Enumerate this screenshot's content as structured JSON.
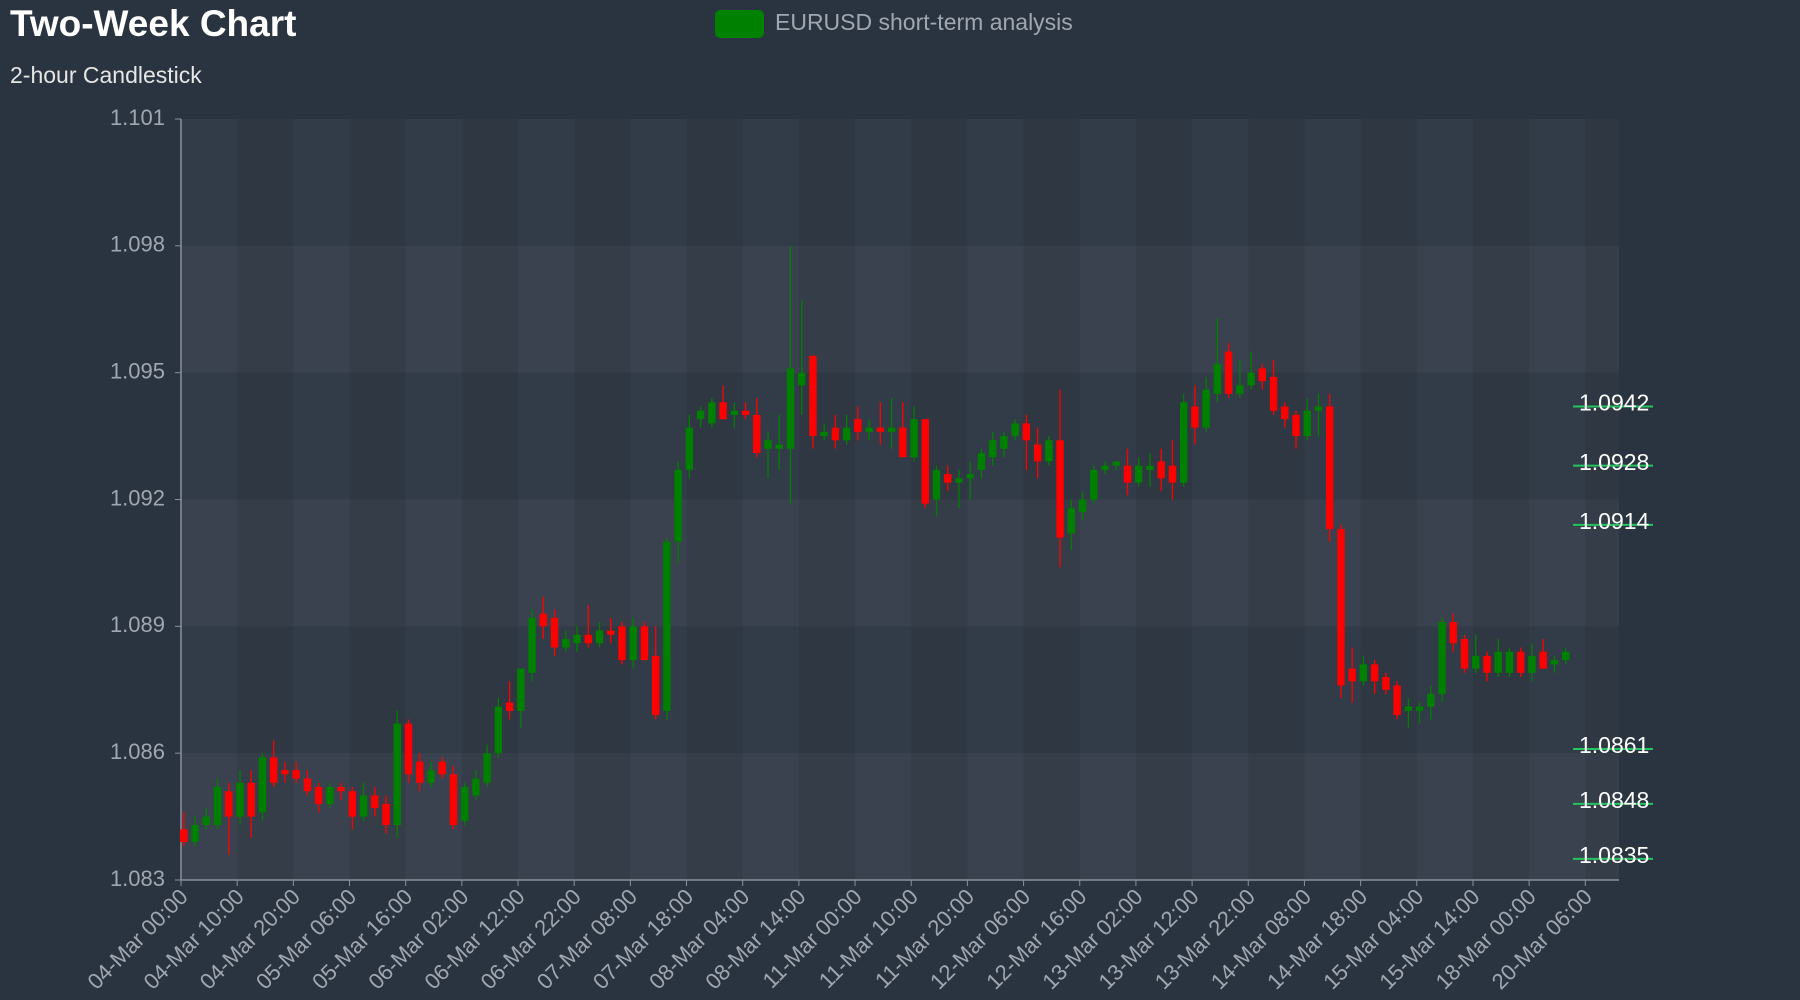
{
  "chart_data": {
    "type": "candlestick",
    "title": "Two-Week Chart",
    "subtitle": "2-hour Candlestick",
    "categories": [
      "04-Mar 00:00",
      null,
      null,
      null,
      null,
      "04-Mar 10:00",
      null,
      null,
      null,
      null,
      "04-Mar 20:00",
      null,
      null,
      null,
      null,
      "05-Mar 06:00",
      null,
      null,
      null,
      null,
      "05-Mar 16:00",
      null,
      null,
      null,
      null,
      "06-Mar 02:00",
      null,
      null,
      null,
      null,
      "06-Mar 12:00",
      null,
      null,
      null,
      null,
      "06-Mar 22:00",
      null,
      null,
      null,
      null,
      "07-Mar 08:00",
      null,
      null,
      null,
      null,
      "07-Mar 18:00",
      null,
      null,
      null,
      null,
      "08-Mar 04:00",
      null,
      null,
      null,
      null,
      "08-Mar 14:00",
      null,
      null,
      null,
      null,
      "11-Mar 00:00",
      null,
      null,
      null,
      null,
      "11-Mar 10:00",
      null,
      null,
      null,
      null,
      "11-Mar 20:00",
      null,
      null,
      null,
      null,
      "12-Mar 06:00",
      null,
      null,
      null,
      null,
      "12-Mar 16:00",
      null,
      null,
      null,
      null,
      "13-Mar 02:00",
      null,
      null,
      null,
      null,
      "13-Mar 12:00",
      null,
      null,
      null,
      null,
      "13-Mar 22:00",
      null,
      null,
      null,
      null,
      "14-Mar 08:00",
      null,
      null,
      null,
      null,
      "14-Mar 18:00",
      null,
      null,
      null,
      null,
      "15-Mar 04:00",
      null,
      null,
      null,
      null,
      "15-Mar 14:00",
      null,
      null,
      null,
      null,
      "18-Mar 00:00",
      null,
      null,
      null,
      null,
      "20-Mar 06:00",
      null,
      null
    ],
    "series": [
      {
        "name": "EURUSD short-term analysis",
        "color": "#008000",
        "down_color": "#ff0000",
        "open": [
          1.0842,
          1.0839,
          1.0843,
          1.0843,
          1.0851,
          1.0845,
          1.0853,
          1.0846,
          1.0859,
          1.0856,
          1.0856,
          1.0854,
          1.0852,
          1.0848,
          1.0852,
          1.0851,
          1.0845,
          1.085,
          1.0848,
          1.0843,
          1.0867,
          1.0858,
          1.0853,
          1.0858,
          1.0855,
          1.0844,
          1.085,
          1.0853,
          1.086,
          1.0872,
          1.087,
          1.0879,
          1.0893,
          1.0892,
          1.0885,
          1.0886,
          1.0888,
          1.0886,
          1.0889,
          1.089,
          1.0882,
          1.089,
          1.0883,
          1.087,
          1.091,
          1.0927,
          1.0939,
          1.0938,
          1.0943,
          1.094,
          1.0941,
          1.094,
          1.0932,
          1.0932,
          1.0932,
          1.0947,
          1.0954,
          1.0935,
          1.0937,
          1.0934,
          1.0939,
          1.0936,
          1.0937,
          1.0936,
          1.0937,
          1.093,
          1.0939,
          1.092,
          1.0926,
          1.0924,
          1.0925,
          1.0927,
          1.093,
          1.0932,
          1.0935,
          1.0938,
          1.0933,
          1.0929,
          1.0934,
          1.0912,
          1.0917,
          1.092,
          1.0927,
          1.0928,
          1.0928,
          1.0924,
          1.0927,
          1.0929,
          1.0928,
          1.0924,
          1.0942,
          1.0937,
          1.0945,
          1.0955,
          1.0945,
          1.0947,
          1.0951,
          1.0949,
          1.0942,
          1.094,
          1.0935,
          1.0941,
          1.0942,
          1.0913,
          1.088,
          1.0877,
          1.0881,
          1.0878,
          1.0876,
          1.087,
          1.087,
          1.0871,
          1.0874,
          1.0891,
          1.0887,
          1.088,
          1.0883,
          1.0879,
          1.0879,
          1.0884,
          1.0879,
          1.0884,
          1.0881,
          1.0882,
          null,
          null,
          null,
          null
        ],
        "high": [
          1.0846,
          1.0845,
          1.0847,
          1.0854,
          1.0853,
          1.0856,
          1.0856,
          1.086,
          1.0863,
          1.0858,
          1.0858,
          1.0856,
          1.0853,
          1.0853,
          1.0853,
          1.0852,
          1.0853,
          1.0852,
          1.085,
          1.087,
          1.0868,
          1.086,
          1.0858,
          1.0859,
          1.0857,
          1.0853,
          1.0856,
          1.0862,
          1.0873,
          1.0877,
          1.088,
          1.0894,
          1.0897,
          1.0894,
          1.0889,
          1.089,
          1.0895,
          1.0891,
          1.0892,
          1.0891,
          1.0892,
          1.0891,
          1.089,
          1.0911,
          1.0929,
          1.094,
          1.0942,
          1.0944,
          1.0947,
          1.0943,
          1.0943,
          1.0944,
          1.0936,
          1.094,
          1.098,
          1.0967,
          1.0954,
          1.0938,
          1.094,
          1.094,
          1.0942,
          1.0939,
          1.0943,
          1.0944,
          1.0943,
          1.0942,
          1.0939,
          1.0928,
          1.0928,
          1.0927,
          1.0929,
          1.0932,
          1.0936,
          1.0936,
          1.0939,
          1.094,
          1.0937,
          1.0935,
          1.0946,
          1.092,
          1.0922,
          1.0928,
          1.0929,
          1.0929,
          1.0932,
          1.093,
          1.0931,
          1.0932,
          1.0934,
          1.0945,
          1.0947,
          1.0949,
          1.0963,
          1.0957,
          1.0953,
          1.0955,
          1.0952,
          1.0953,
          1.0943,
          1.0941,
          1.0944,
          1.0945,
          1.0945,
          1.0914,
          1.0885,
          1.0883,
          1.0882,
          1.0879,
          1.0877,
          1.0873,
          1.0872,
          1.0876,
          1.0892,
          1.0893,
          1.0888,
          1.0888,
          1.0884,
          1.0887,
          1.0885,
          1.0885,
          1.0886,
          1.0887,
          1.0883,
          1.0885,
          null,
          null,
          null,
          null
        ],
        "low": [
          1.0838,
          1.0838,
          1.0842,
          1.0842,
          1.0836,
          1.0843,
          1.084,
          1.0844,
          1.0852,
          1.0853,
          1.0853,
          1.085,
          1.0846,
          1.0847,
          1.0849,
          1.0842,
          1.0844,
          1.0845,
          1.0841,
          1.084,
          1.0853,
          1.0851,
          1.0852,
          1.0854,
          1.0842,
          1.0843,
          1.0849,
          1.0852,
          1.0859,
          1.0868,
          1.0866,
          1.0877,
          1.0887,
          1.0883,
          1.0884,
          1.0884,
          1.0885,
          1.0885,
          1.0886,
          1.0881,
          1.088,
          1.0882,
          1.0868,
          1.0868,
          1.0905,
          1.0925,
          1.0937,
          1.0937,
          1.0939,
          1.0937,
          1.0939,
          1.093,
          1.0925,
          1.0927,
          1.0919,
          1.094,
          1.0932,
          1.0934,
          1.0932,
          1.0933,
          1.0934,
          1.0934,
          1.0933,
          1.0932,
          1.093,
          1.0929,
          1.0918,
          1.0916,
          1.0922,
          1.0918,
          1.092,
          1.0925,
          1.0928,
          1.093,
          1.0934,
          1.0927,
          1.0925,
          1.0928,
          1.0904,
          1.0908,
          1.0915,
          1.0919,
          1.0926,
          1.0927,
          1.0921,
          1.0923,
          1.0923,
          1.0922,
          1.092,
          1.0923,
          1.0933,
          1.0936,
          1.0943,
          1.0944,
          1.0944,
          1.0946,
          1.0946,
          1.094,
          1.0937,
          1.0932,
          1.0934,
          1.0935,
          1.091,
          1.0873,
          1.0872,
          1.0876,
          1.0874,
          1.0874,
          1.0868,
          1.0866,
          1.0867,
          1.0868,
          1.0872,
          1.0884,
          1.0879,
          1.0879,
          1.0877,
          1.0878,
          1.0878,
          1.0878,
          1.0877,
          1.088,
          1.0879,
          1.0881,
          null,
          null,
          null,
          null
        ],
        "close": [
          1.0839,
          1.0843,
          1.0845,
          1.0852,
          1.0845,
          1.0853,
          1.0845,
          1.0859,
          1.0853,
          1.0855,
          1.0854,
          1.0851,
          1.0848,
          1.0852,
          1.0851,
          1.0845,
          1.085,
          1.0847,
          1.0843,
          1.0867,
          1.0855,
          1.0853,
          1.0856,
          1.0855,
          1.0843,
          1.0852,
          1.0854,
          1.086,
          1.0871,
          1.087,
          1.088,
          1.0892,
          1.089,
          1.0885,
          1.0887,
          1.0888,
          1.0886,
          1.0889,
          1.0888,
          1.0882,
          1.089,
          1.0882,
          1.0869,
          1.091,
          1.0927,
          1.0937,
          1.0941,
          1.0943,
          1.0939,
          1.0941,
          1.094,
          1.0931,
          1.0934,
          1.0933,
          1.0951,
          1.095,
          1.0935,
          1.0936,
          1.0934,
          1.0937,
          1.0936,
          1.0937,
          1.0936,
          1.0937,
          1.093,
          1.0939,
          1.0919,
          1.0927,
          1.0924,
          1.0925,
          1.0926,
          1.0931,
          1.0934,
          1.0935,
          1.0938,
          1.0934,
          1.0929,
          1.0934,
          1.0911,
          1.0918,
          1.092,
          1.0927,
          1.0928,
          1.0929,
          1.0924,
          1.0928,
          1.0928,
          1.0925,
          1.0924,
          1.0943,
          1.0937,
          1.0946,
          1.0952,
          1.0945,
          1.0947,
          1.095,
          1.0948,
          1.0941,
          1.0939,
          1.0935,
          1.0941,
          1.0942,
          1.0913,
          1.0876,
          1.0877,
          1.0881,
          1.0877,
          1.0875,
          1.0869,
          1.0871,
          1.0871,
          1.0874,
          1.0891,
          1.0886,
          1.088,
          1.0883,
          1.0879,
          1.0884,
          1.0884,
          1.0879,
          1.0883,
          1.088,
          1.0882,
          1.0884,
          null,
          null,
          null,
          null
        ]
      }
    ],
    "ylim": [
      1.083,
      1.101
    ],
    "yticks": [
      1.083,
      1.086,
      1.089,
      1.092,
      1.095,
      1.098,
      1.101
    ],
    "grid": true,
    "levels": [
      {
        "value": 1.0942,
        "color": "#22c55e"
      },
      {
        "value": 1.0928,
        "color": "#22c55e"
      },
      {
        "value": 1.0914,
        "color": "#22c55e"
      },
      {
        "value": 1.0861,
        "color": "#22c55e"
      },
      {
        "value": 1.0848,
        "color": "#22c55e"
      },
      {
        "value": 1.0835,
        "color": "#22c55e"
      }
    ]
  }
}
